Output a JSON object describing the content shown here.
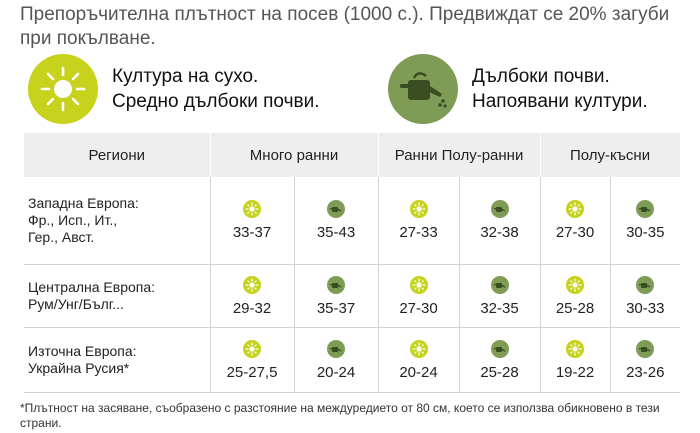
{
  "intro": "Препоръчителна плътност на посев (1000 с.). Предвиждат се 20% загуби при покълване.",
  "legend": {
    "dry": {
      "line1": "Култура на сухо.",
      "line2": "Средно дълбоки почви.",
      "icon": "sun-icon"
    },
    "wet": {
      "line1": "Дълбоки почви.",
      "line2": "Напоявани култури.",
      "icon": "watering-can-icon"
    }
  },
  "colors": {
    "sun": "#c6d21b",
    "water": "#7e9c56",
    "header_bg": "#eeeeee"
  },
  "table": {
    "headers": {
      "region": "Региони",
      "group1": "Много ранни",
      "group2": "Ранни Полу-ранни",
      "group3": "Полу-късни"
    },
    "rows": [
      {
        "region": [
          "Западна Европа:",
          "Фр., Исп., Ит.,",
          "Гер., Авст."
        ],
        "values": [
          "33-37",
          "35-43",
          "27-33",
          "32-38",
          "27-30",
          "30-35"
        ]
      },
      {
        "region": [
          "Централна Европа:",
          "Рум/Унг/Бълг..."
        ],
        "values": [
          "29-32",
          "35-37",
          "27-30",
          "32-35",
          "25-28",
          "30-33"
        ]
      },
      {
        "region": [
          "Източна Европа:",
          "Украйна Русия*"
        ],
        "values": [
          "25-27,5",
          "20-24",
          "20-24",
          "25-28",
          "19-22",
          "23-26"
        ]
      }
    ]
  },
  "footnote": "*Плътност на засяване, съобразено с разстояние на междуредието от 80 см, което се използва обикновено в тези страни."
}
